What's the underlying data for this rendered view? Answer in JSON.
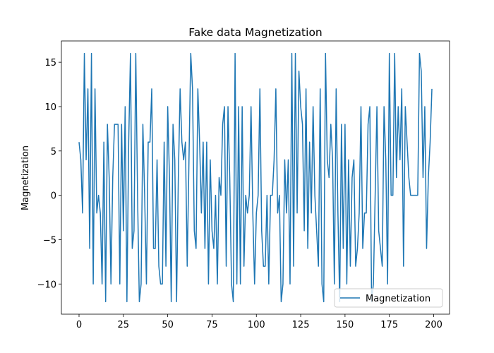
{
  "chart_data": {
    "type": "line",
    "title": "Fake data Magnetization",
    "y_label": "Magnetization",
    "x": [
      0,
      1,
      2,
      3,
      4,
      5,
      6,
      7,
      8,
      9,
      10,
      11,
      12,
      13,
      14,
      15,
      16,
      17,
      18,
      19,
      20,
      21,
      22,
      23,
      24,
      25,
      26,
      27,
      28,
      29,
      30,
      31,
      32,
      33,
      34,
      35,
      36,
      37,
      38,
      39,
      40,
      41,
      42,
      43,
      44,
      45,
      46,
      47,
      48,
      49,
      50,
      51,
      52,
      53,
      54,
      55,
      56,
      57,
      58,
      59,
      60,
      61,
      62,
      63,
      64,
      65,
      66,
      67,
      68,
      69,
      70,
      71,
      72,
      73,
      74,
      75,
      76,
      77,
      78,
      79,
      80,
      81,
      82,
      83,
      84,
      85,
      86,
      87,
      88,
      89,
      90,
      91,
      92,
      93,
      94,
      95,
      96,
      97,
      98,
      99,
      100,
      101,
      102,
      103,
      104,
      105,
      106,
      107,
      108,
      109,
      110,
      111,
      112,
      113,
      114,
      115,
      116,
      117,
      118,
      119,
      120,
      121,
      122,
      123,
      124,
      125,
      126,
      127,
      128,
      129,
      130,
      131,
      132,
      133,
      134,
      135,
      136,
      137,
      138,
      139,
      140,
      141,
      142,
      143,
      144,
      145,
      146,
      147,
      148,
      149,
      150,
      151,
      152,
      153,
      154,
      155,
      156,
      157,
      158,
      159,
      160,
      161,
      162,
      163,
      164,
      165,
      166,
      167,
      168,
      169,
      170,
      171,
      172,
      173,
      174,
      175,
      176,
      177,
      178,
      179,
      180,
      181,
      182,
      183,
      184,
      185,
      186,
      187,
      188,
      189,
      190,
      191,
      192,
      193,
      194,
      195,
      196,
      197,
      198,
      199
    ],
    "series": [
      {
        "name": "Magnetization",
        "color": "#1f77b4",
        "values": [
          6,
          4,
          -2,
          16,
          4,
          12,
          -6,
          16,
          -10,
          12,
          -2,
          0,
          -2,
          -10,
          6,
          -12,
          8,
          2,
          -10,
          2,
          8,
          8,
          8,
          -10,
          8,
          -4,
          10,
          -12,
          6,
          16,
          -6,
          -4,
          16,
          0,
          -12,
          -10,
          8,
          0,
          -10,
          6,
          6,
          12,
          -6,
          -6,
          4,
          -8,
          -10,
          -10,
          6,
          -8,
          10,
          2,
          -12,
          8,
          4,
          -12,
          2,
          12,
          6,
          4,
          6,
          -8,
          4,
          16,
          12,
          -4,
          -6,
          12,
          6,
          -2,
          6,
          -6,
          6,
          -10,
          4,
          -4,
          -6,
          0,
          -10,
          2,
          0,
          8,
          10,
          -8,
          10,
          2,
          -10,
          -12,
          16,
          -10,
          10,
          -10,
          10,
          -8,
          0,
          -2,
          0,
          10,
          -2,
          -10,
          -2,
          0,
          12,
          -4,
          -8,
          -8,
          0,
          -10,
          0,
          0,
          4,
          12,
          -2,
          0,
          -12,
          -10,
          4,
          -2,
          4,
          -10,
          16,
          -8,
          16,
          -2,
          14,
          10,
          8,
          -4,
          12,
          -6,
          6,
          -2,
          10,
          0,
          -4,
          -8,
          12,
          -10,
          -12,
          16,
          4,
          2,
          8,
          4,
          -10,
          12,
          -2,
          -12,
          8,
          -6,
          8,
          -10,
          4,
          -8,
          2,
          4,
          -8,
          -6,
          -2,
          10,
          -6,
          -2,
          -2,
          8,
          10,
          -12,
          -10,
          0,
          10,
          -4,
          -6,
          -8,
          10,
          4,
          -10,
          16,
          0,
          0,
          16,
          2,
          10,
          4,
          12,
          -8,
          10,
          6,
          2,
          0,
          0,
          0,
          0,
          0,
          16,
          14,
          2,
          10,
          -6,
          2,
          6,
          12
        ]
      }
    ],
    "xlim": [
      -9.95,
      208.95
    ],
    "ylim": [
      -13.4,
      17.4
    ],
    "xticks": [
      0,
      25,
      50,
      75,
      100,
      125,
      150,
      175,
      200
    ],
    "yticks": [
      {
        "value": -10,
        "label": "−10"
      },
      {
        "value": -5,
        "label": "−5"
      },
      0,
      5,
      10,
      15
    ],
    "legend": "lower right"
  }
}
